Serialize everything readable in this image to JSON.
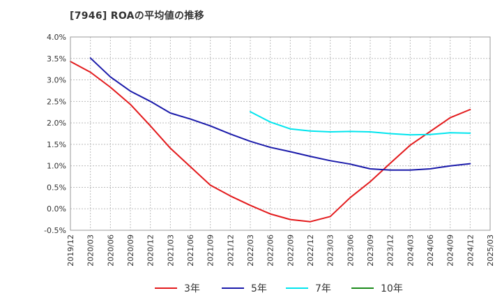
{
  "chart_data": {
    "type": "line",
    "title": "[7946]  ROAの平均値の推移",
    "xlabel": "",
    "ylabel": "",
    "ylim": [
      -0.5,
      4.0
    ],
    "y_ticks": [
      "4.0%",
      "3.5%",
      "3.0%",
      "2.5%",
      "2.0%",
      "1.5%",
      "1.0%",
      "0.5%",
      "0.0%",
      "-0.5%"
    ],
    "x_ticks": [
      "2019/12",
      "2020/03",
      "2020/06",
      "2020/09",
      "2020/12",
      "2021/03",
      "2021/06",
      "2021/09",
      "2021/12",
      "2022/03",
      "2022/06",
      "2022/09",
      "2022/12",
      "2023/03",
      "2023/06",
      "2023/09",
      "2023/12",
      "2024/03",
      "2024/06",
      "2024/09",
      "2024/12",
      "2025/03"
    ],
    "grid": true,
    "legend_position": "bottom",
    "series": [
      {
        "name": "3年",
        "color": "#e31a1c",
        "x": [
          "2019/12",
          "2020/03",
          "2020/06",
          "2020/09",
          "2020/12",
          "2021/03",
          "2021/06",
          "2021/09",
          "2021/12",
          "2022/03",
          "2022/06",
          "2022/09",
          "2022/12",
          "2023/03",
          "2023/06",
          "2023/09",
          "2023/12",
          "2024/03",
          "2024/06",
          "2024/09",
          "2024/12"
        ],
        "values": [
          3.43,
          3.18,
          2.83,
          2.43,
          1.93,
          1.41,
          0.98,
          0.55,
          0.3,
          0.08,
          -0.12,
          -0.25,
          -0.3,
          -0.18,
          0.26,
          0.63,
          1.06,
          1.48,
          1.8,
          2.12,
          2.31
        ]
      },
      {
        "name": "5年",
        "color": "#1a1aaa",
        "x": [
          "2020/03",
          "2020/06",
          "2020/09",
          "2020/12",
          "2021/03",
          "2021/06",
          "2021/09",
          "2021/12",
          "2022/03",
          "2022/06",
          "2022/09",
          "2022/12",
          "2023/03",
          "2023/06",
          "2023/09",
          "2023/12",
          "2024/03",
          "2024/06",
          "2024/09",
          "2024/12"
        ],
        "values": [
          3.51,
          3.07,
          2.74,
          2.5,
          2.23,
          2.09,
          1.93,
          1.74,
          1.57,
          1.43,
          1.33,
          1.22,
          1.12,
          1.04,
          0.93,
          0.9,
          0.9,
          0.93,
          1.0,
          1.05
        ]
      },
      {
        "name": "7年",
        "color": "#00e5ee",
        "x": [
          "2022/03",
          "2022/06",
          "2022/09",
          "2022/12",
          "2023/03",
          "2023/06",
          "2023/09",
          "2023/12",
          "2024/03",
          "2024/06",
          "2024/09",
          "2024/12"
        ],
        "values": [
          2.26,
          2.02,
          1.86,
          1.81,
          1.79,
          1.8,
          1.79,
          1.75,
          1.72,
          1.73,
          1.77,
          1.76
        ]
      },
      {
        "name": "10年",
        "color": "#1a8a1a",
        "x": [],
        "values": []
      }
    ]
  }
}
